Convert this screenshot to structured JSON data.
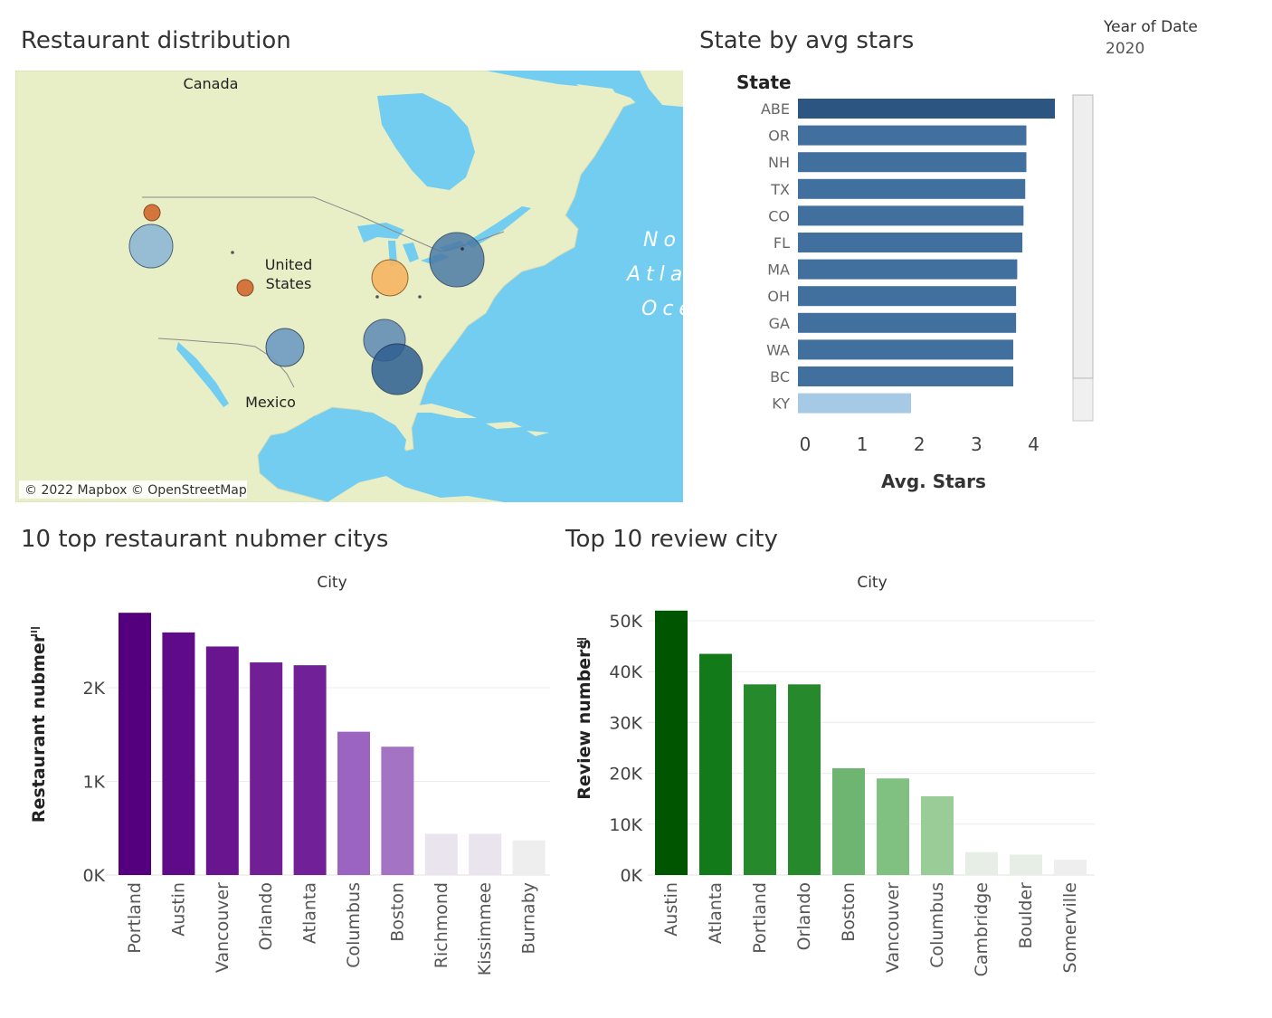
{
  "filter": {
    "label": "Year of Date",
    "value": "2020"
  },
  "map": {
    "title": "Restaurant distribution",
    "labels": {
      "canada": "Canada",
      "us_line1": "United",
      "us_line2": "States",
      "mexico": "Mexico",
      "ocean1": "No",
      "ocean2": "Atla",
      "ocean3": "Oce"
    },
    "attribution": "© 2022 Mapbox © OpenStreetMap",
    "colors": {
      "water": "#72CDF0",
      "land": "#E8EEC6",
      "border": "#8a8a8a"
    }
  },
  "chart_data": [
    {
      "type": "bar",
      "orientation": "horizontal",
      "title": "State by avg stars",
      "category_header": "State",
      "xlabel": "Avg. Stars",
      "xlim": [
        0,
        4.8
      ],
      "xticks": [
        "0",
        "1",
        "2",
        "3",
        "4"
      ],
      "categories": [
        "ABE",
        "OR",
        "NH",
        "TX",
        "CO",
        "FL",
        "MA",
        "OH",
        "GA",
        "WA",
        "BC",
        "KY"
      ],
      "values": [
        4.5,
        4.0,
        4.0,
        3.98,
        3.95,
        3.93,
        3.84,
        3.82,
        3.82,
        3.77,
        3.77,
        1.98
      ],
      "colors": [
        "#2C5582",
        "#41709F",
        "#41709F",
        "#41709F",
        "#41709F",
        "#41709F",
        "#41709F",
        "#41709F",
        "#41709F",
        "#41709F",
        "#41709F",
        "#A6C9E6"
      ]
    },
    {
      "type": "bar",
      "title": "10 top restaurant nubmer citys",
      "column_header": "City",
      "ylabel": "Restaurant nubmer",
      "ylim": [
        0,
        2850
      ],
      "yticks": [
        {
          "v": 0,
          "label": "0K"
        },
        {
          "v": 1000,
          "label": "1K"
        },
        {
          "v": 2000,
          "label": "2K"
        }
      ],
      "categories": [
        "Portland",
        "Austin",
        "Vancouver",
        "Orlando",
        "Atlanta",
        "Columbus",
        "Boston",
        "Richmond",
        "Kissimmee",
        "Burnaby"
      ],
      "values": [
        2800,
        2590,
        2440,
        2270,
        2240,
        1530,
        1370,
        440,
        440,
        370
      ],
      "colors": [
        "#54007E",
        "#5F0A89",
        "#68158F",
        "#701F95",
        "#722097",
        "#9C64C1",
        "#A473C4",
        "#E9E4EE",
        "#E9E4EE",
        "#EEEEEE"
      ]
    },
    {
      "type": "bar",
      "title": "Top 10 review city",
      "column_header": "City",
      "ylabel": "Review numbers",
      "ylim": [
        0,
        52500
      ],
      "yticks": [
        {
          "v": 0,
          "label": "0K"
        },
        {
          "v": 10000,
          "label": "10K"
        },
        {
          "v": 20000,
          "label": "20K"
        },
        {
          "v": 30000,
          "label": "30K"
        },
        {
          "v": 40000,
          "label": "40K"
        },
        {
          "v": 50000,
          "label": "50K"
        }
      ],
      "categories": [
        "Austin",
        "Atlanta",
        "Portland",
        "Orlando",
        "Boston",
        "Vancouver",
        "Columbus",
        "Cambridge",
        "Boulder",
        "Somerville"
      ],
      "values": [
        52000,
        43500,
        37500,
        37500,
        21000,
        19000,
        15500,
        4500,
        4000,
        3000
      ],
      "colors": [
        "#005500",
        "#137A19",
        "#268A2D",
        "#268A2D",
        "#6EB572",
        "#80C081",
        "#99CC97",
        "#E7EEE6",
        "#E7EEE6",
        "#EEEEEE"
      ]
    }
  ]
}
